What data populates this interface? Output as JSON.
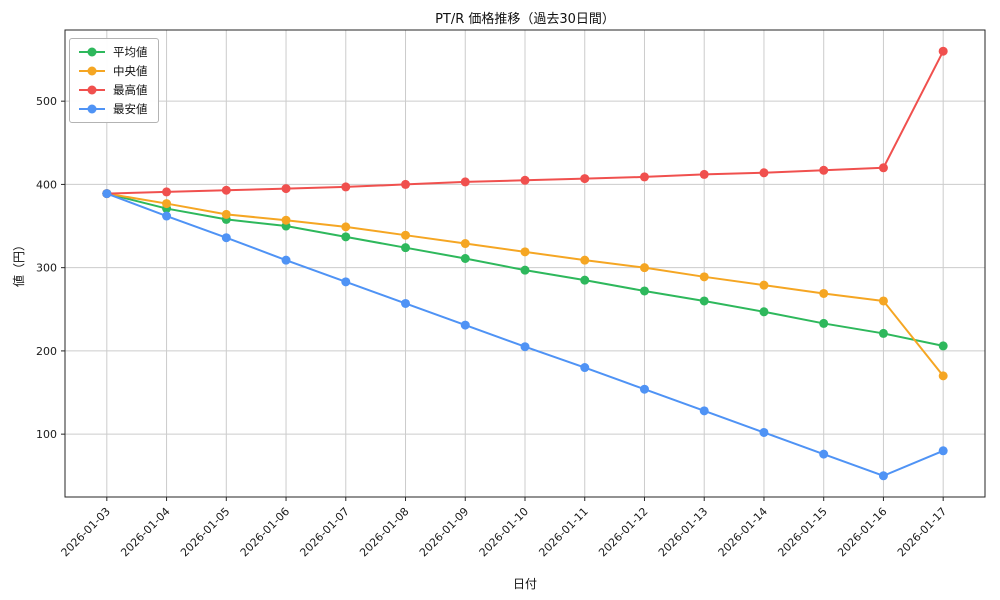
{
  "chart_data": {
    "type": "line",
    "title": "PT/R 価格推移（過去30日間）",
    "xlabel": "日付",
    "ylabel": "値（円）",
    "categories": [
      "2026-01-03",
      "2026-01-04",
      "2026-01-05",
      "2026-01-06",
      "2026-01-07",
      "2026-01-08",
      "2026-01-09",
      "2026-01-10",
      "2026-01-11",
      "2026-01-12",
      "2026-01-13",
      "2026-01-14",
      "2026-01-15",
      "2026-01-16",
      "2026-01-17"
    ],
    "series": [
      {
        "name": "平均値",
        "color": "#2eb85c",
        "values": [
          389,
          371,
          358,
          350,
          337,
          324,
          311,
          297,
          285,
          272,
          260,
          247,
          233,
          221,
          206
        ]
      },
      {
        "name": "中央値",
        "color": "#f5a623",
        "values": [
          389,
          377,
          364,
          357,
          349,
          339,
          329,
          319,
          309,
          300,
          289,
          279,
          269,
          260,
          170
        ]
      },
      {
        "name": "最高値",
        "color": "#f0504e",
        "values": [
          389,
          391,
          393,
          395,
          397,
          400,
          403,
          405,
          407,
          409,
          412,
          414,
          417,
          420,
          560
        ]
      },
      {
        "name": "最安値",
        "color": "#4f93f5",
        "values": [
          389,
          362,
          336,
          309,
          283,
          257,
          231,
          205,
          180,
          154,
          128,
          102,
          76,
          50,
          80
        ]
      }
    ],
    "yticks": [
      100,
      200,
      300,
      400,
      500
    ],
    "ylim": [
      24.5,
      585.5
    ],
    "grid": true,
    "legend_position": "upper left",
    "marker": "o",
    "colors": {
      "grid": "#cccccc",
      "frame": "#262626",
      "background": "#ffffff"
    }
  }
}
